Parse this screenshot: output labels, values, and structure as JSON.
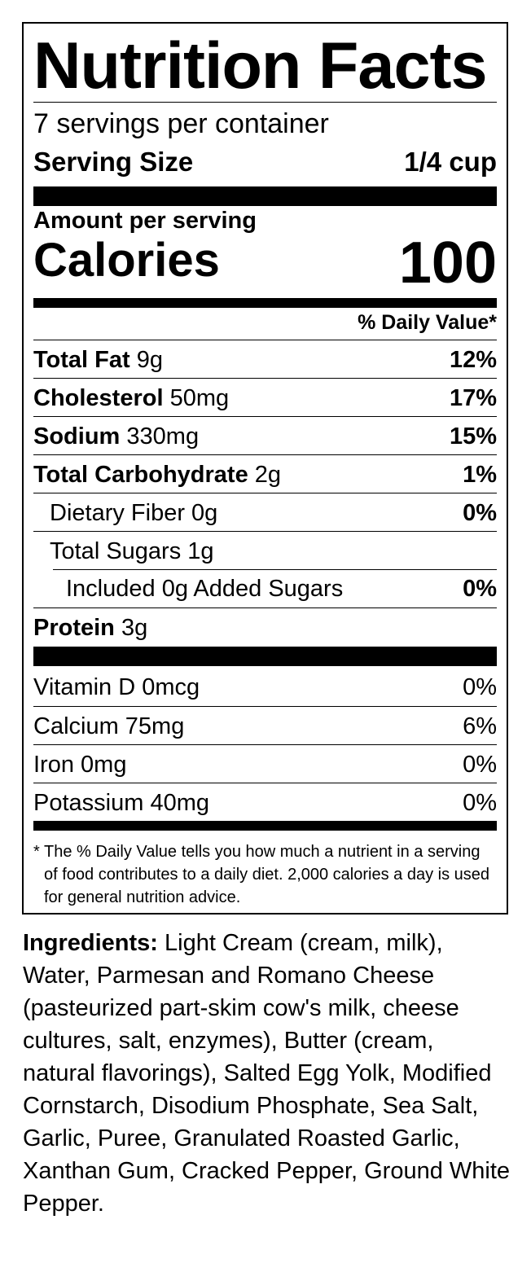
{
  "label": {
    "title": "Nutrition Facts",
    "servings_per_container": "7 servings per container",
    "serving_size_label": "Serving Size",
    "serving_size_value": "1/4 cup",
    "amount_per_serving": "Amount per serving",
    "calories_label": "Calories",
    "calories_value": "100",
    "daily_value_header": "% Daily Value*",
    "nutrients": [
      {
        "name": "Total Fat",
        "amount": "9g",
        "dv": "12%"
      },
      {
        "name": "Cholesterol",
        "amount": "50mg",
        "dv": "17%"
      },
      {
        "name": "Sodium",
        "amount": "330mg",
        "dv": "15%"
      },
      {
        "name": "Total Carbohydrate",
        "amount": "2g",
        "dv": "1%"
      },
      {
        "name": "Dietary Fiber 0g",
        "dv": "0%"
      },
      {
        "name": "Total Sugars 1g"
      },
      {
        "name": "Included 0g Added Sugars",
        "dv": "0%"
      },
      {
        "name": "Protein",
        "amount": "3g"
      }
    ],
    "vitamins": [
      {
        "name": "Vitamin D 0mcg",
        "dv": "0%"
      },
      {
        "name": "Calcium 75mg",
        "dv": "6%"
      },
      {
        "name": "Iron 0mg",
        "dv": "0%"
      },
      {
        "name": "Potassium 40mg",
        "dv": "0%"
      }
    ],
    "footnote_star": "*",
    "footnote": "The % Daily Value tells you how much a nutrient in a serving of food contributes to a daily diet. 2,000 calories a day is used for general nutrition advice."
  },
  "ingredients": {
    "label": "Ingredients:",
    "text": "Light Cream (cream, milk), Water, Parmesan and Romano Cheese (pasteurized part-skim cow's milk, cheese cultures, salt, enzymes), Butter (cream, natural flavorings), Salted Egg Yolk, Modified Cornstarch, Disodium Phosphate, Sea Salt, Garlic, Puree, Granulated Roasted Garlic, Xanthan Gum, Cracked Pepper, Ground White Pepper."
  }
}
